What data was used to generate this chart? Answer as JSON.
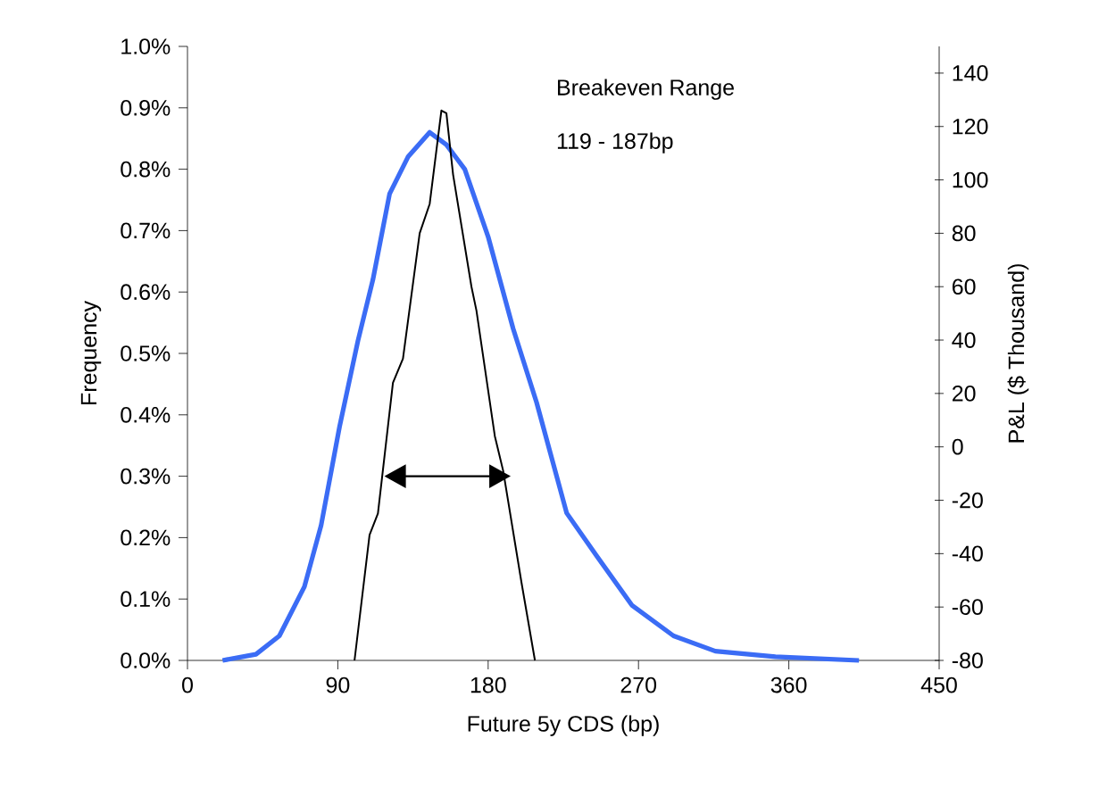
{
  "chart_data": {
    "type": "line",
    "xlabel": "Future 5y CDS (bp)",
    "ylabel": "Frequency",
    "y2label": "P&L ($ Thousand)",
    "annotations": [
      "Breakeven Range",
      "119 - 187bp"
    ],
    "xlim": [
      0,
      450
    ],
    "xticks": [
      0,
      90,
      180,
      270,
      360,
      450
    ],
    "ylim": [
      0,
      1.0
    ],
    "yticks": [
      {
        "value": 0,
        "label": "0.0%"
      },
      {
        "value": 0.1,
        "label": "0.1%"
      },
      {
        "value": 0.2,
        "label": "0.2%"
      },
      {
        "value": 0.3,
        "label": "0.3%"
      },
      {
        "value": 0.4,
        "label": "0.4%"
      },
      {
        "value": 0.5,
        "label": "0.5%"
      },
      {
        "value": 0.6,
        "label": "0.6%"
      },
      {
        "value": 0.7,
        "label": "0.7%"
      },
      {
        "value": 0.8,
        "label": "0.8%"
      },
      {
        "value": 0.9,
        "label": "0.9%"
      },
      {
        "value": 1.0,
        "label": "1.0%"
      }
    ],
    "y2lim": [
      -80,
      150
    ],
    "y2ticks": [
      -80,
      -60,
      -40,
      -20,
      0,
      20,
      40,
      60,
      80,
      100,
      120,
      140
    ],
    "series": [
      {
        "color": "#3b6cf5",
        "x": [
          21,
          41,
          55,
          70,
          80,
          91,
          102,
          111,
          121,
          132,
          145,
          155,
          166,
          180,
          195,
          209,
          227,
          245,
          266,
          291,
          316,
          352,
          402
        ],
        "values": [
          0.0,
          0.01,
          0.04,
          0.12,
          0.22,
          0.38,
          0.52,
          0.62,
          0.76,
          0.82,
          0.86,
          0.84,
          0.8,
          0.69,
          0.54,
          0.42,
          0.24,
          0.17,
          0.09,
          0.04,
          0.015,
          0.006,
          0.0
        ]
      },
      {
        "color": "#000000",
        "axis": "y2",
        "x": [
          100,
          109,
          114,
          123,
          129,
          139,
          145,
          152,
          155,
          159,
          170,
          173,
          184,
          189,
          200,
          208
        ],
        "values": [
          -80,
          -33,
          -25,
          24,
          33,
          80,
          91,
          126,
          125,
          102,
          60,
          51,
          4,
          -9,
          -51,
          -80
        ]
      }
    ]
  }
}
